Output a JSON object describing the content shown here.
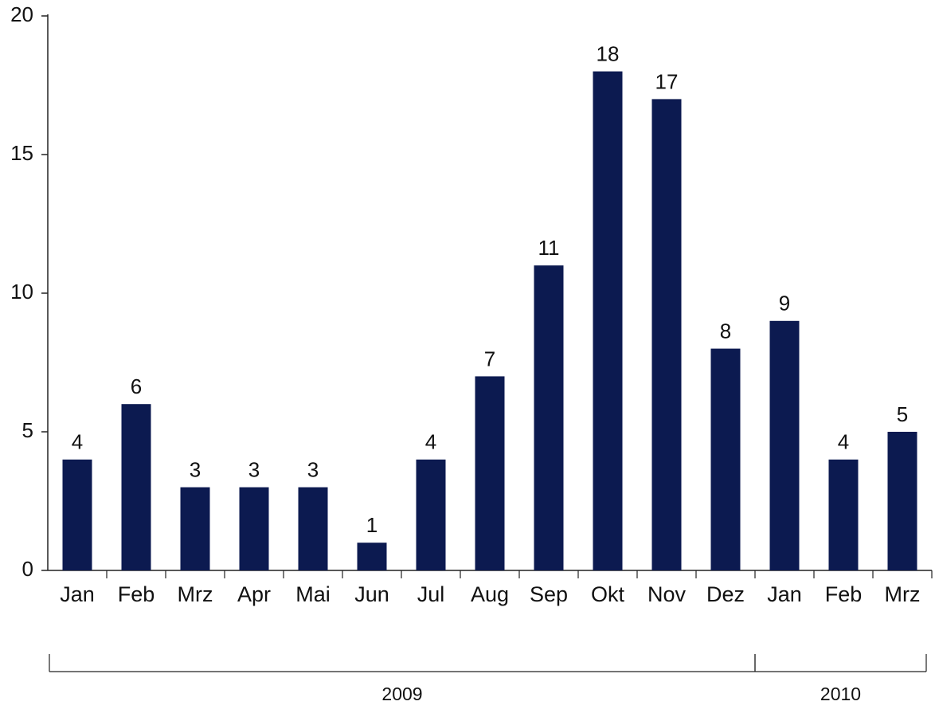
{
  "chart_data": {
    "type": "bar",
    "categories": [
      "Jan",
      "Feb",
      "Mrz",
      "Apr",
      "Mai",
      "Jun",
      "Jul",
      "Aug",
      "Sep",
      "Okt",
      "Nov",
      "Dez",
      "Jan",
      "Feb",
      "Mrz"
    ],
    "values": [
      4,
      6,
      3,
      3,
      3,
      1,
      4,
      7,
      11,
      18,
      17,
      8,
      9,
      4,
      5
    ],
    "color": "#0c1a50",
    "ylim": [
      0,
      20
    ],
    "yticks": [
      0,
      5,
      10,
      15,
      20
    ],
    "grid": false,
    "groups": [
      {
        "label": "2009",
        "span": 12
      },
      {
        "label": "2010",
        "span": 3
      }
    ]
  }
}
